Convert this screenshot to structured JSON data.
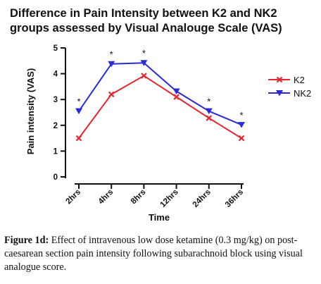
{
  "chart_data": {
    "type": "line",
    "title_lines": [
      "Difference in Pain Intensity between K2 and NK2",
      "groups assessed by Visual Analouge Scale (VAS)"
    ],
    "xlabel": "Time",
    "ylabel": "Pain intensity (VAS)",
    "categories": [
      "2hrs",
      "4hrs",
      "8hrs",
      "12hrs",
      "24hrs",
      "36hrs"
    ],
    "ylim": [
      0,
      5
    ],
    "yticks": [
      "0",
      "1",
      "2",
      "3",
      "4",
      "5"
    ],
    "grid": false,
    "legend_position": "right",
    "series": [
      {
        "name": "K2",
        "color": "#e8262d",
        "marker": "x",
        "values": [
          1.5,
          3.2,
          3.92,
          3.1,
          2.28,
          1.5
        ]
      },
      {
        "name": "NK2",
        "color": "#2a2ad9",
        "marker": "triangle-down",
        "values": [
          2.55,
          4.38,
          4.42,
          3.32,
          2.55,
          2.02
        ]
      }
    ],
    "significance_marker": "*",
    "significant_categories": [
      "2hrs",
      "4hrs",
      "8hrs",
      "24hrs",
      "36hrs"
    ]
  },
  "caption": {
    "label": "Figure 1d:",
    "text": "Effect of intravenous low dose ketamine (0.3 mg/kg) on post-caesarean section pain intensity following subarachnoid block using visual analogue score."
  }
}
